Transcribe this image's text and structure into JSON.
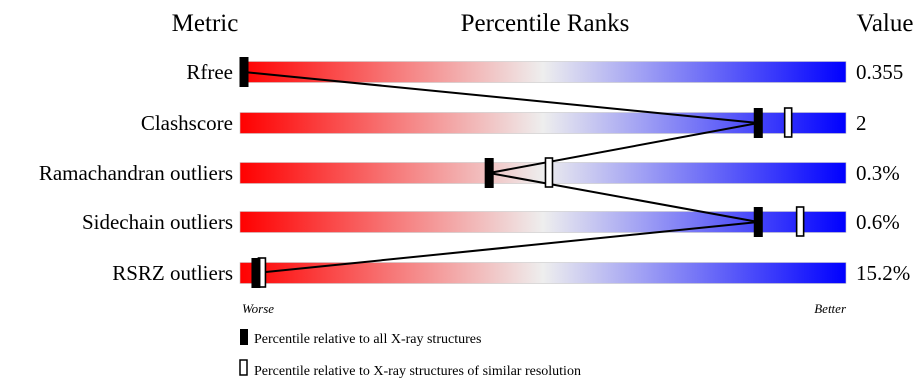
{
  "headers": {
    "metric": "Metric",
    "percentile": "Percentile Ranks",
    "value": "Value"
  },
  "scale": {
    "worse": "Worse",
    "better": "Better"
  },
  "legend": {
    "absolute": "Percentile relative to all X-ray structures",
    "relative": "Percentile relative to X-ray structures of similar resolution"
  },
  "colors": {
    "worse": "#ff0000",
    "middle": "#eeeeee",
    "better": "#0000ff",
    "connector": "#000000"
  },
  "chart_data": {
    "type": "bar",
    "categories": [
      "Rfree",
      "Clashscore",
      "Ramachandran outliers",
      "Sidechain outliers",
      "RSRZ outliers"
    ],
    "values_display": [
      "0.355",
      "2",
      "0.3%",
      "0.6%",
      "15.2%"
    ],
    "series": [
      {
        "name": "Percentile relative to all X-ray structures",
        "marker": "filled",
        "values": [
          0,
          86,
          41,
          86,
          2
        ]
      },
      {
        "name": "Percentile relative to X-ray structures of similar resolution",
        "marker": "open",
        "values": [
          null,
          91,
          51,
          93,
          3
        ]
      }
    ],
    "xlim": [
      0,
      100
    ]
  }
}
